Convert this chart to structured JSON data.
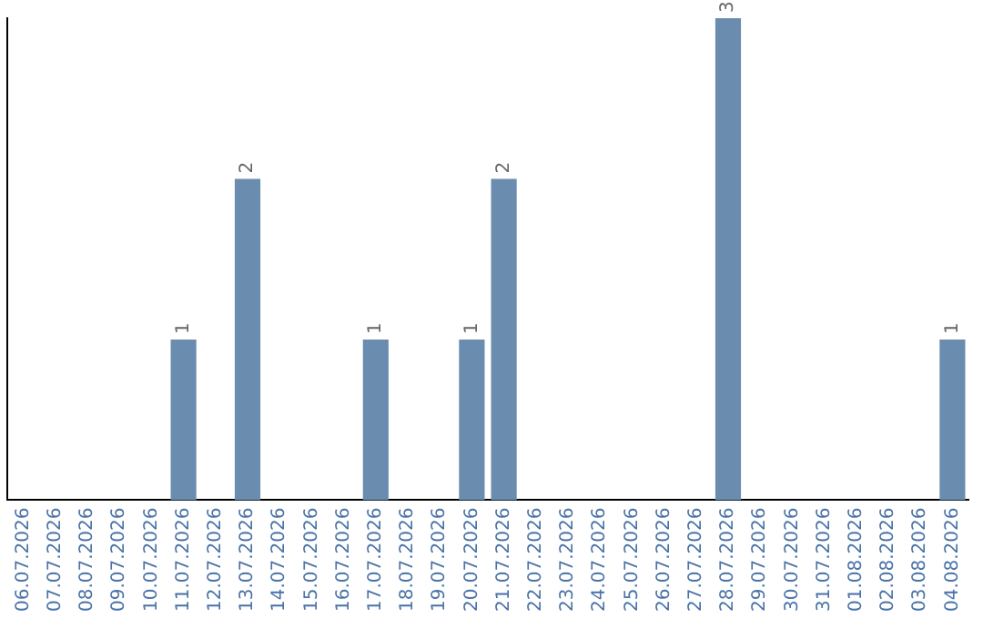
{
  "chart_data": {
    "type": "bar",
    "categories": [
      "06.07.2026",
      "07.07.2026",
      "08.07.2026",
      "09.07.2026",
      "10.07.2026",
      "11.07.2026",
      "12.07.2026",
      "13.07.2026",
      "14.07.2026",
      "15.07.2026",
      "16.07.2026",
      "17.07.2026",
      "18.07.2026",
      "19.07.2026",
      "20.07.2026",
      "21.07.2026",
      "22.07.2026",
      "23.07.2026",
      "24.07.2026",
      "25.07.2026",
      "26.07.2026",
      "27.07.2026",
      "28.07.2026",
      "29.07.2026",
      "30.07.2026",
      "31.07.2026",
      "01.08.2026",
      "02.08.2026",
      "03.08.2026",
      "04.08.2026"
    ],
    "values": [
      0,
      0,
      0,
      0,
      0,
      1,
      0,
      2,
      0,
      0,
      0,
      1,
      0,
      0,
      1,
      2,
      0,
      0,
      0,
      0,
      0,
      0,
      3,
      0,
      0,
      0,
      0,
      0,
      0,
      1
    ],
    "value_labels": [
      null,
      null,
      null,
      null,
      null,
      "1",
      null,
      "2",
      null,
      null,
      null,
      "1",
      null,
      null,
      "1",
      "2",
      null,
      null,
      null,
      null,
      null,
      null,
      "3",
      null,
      null,
      null,
      null,
      null,
      null,
      "1"
    ],
    "color": "#6a8caf",
    "tick_labels": "x",
    "grid": false,
    "legend": false
  }
}
